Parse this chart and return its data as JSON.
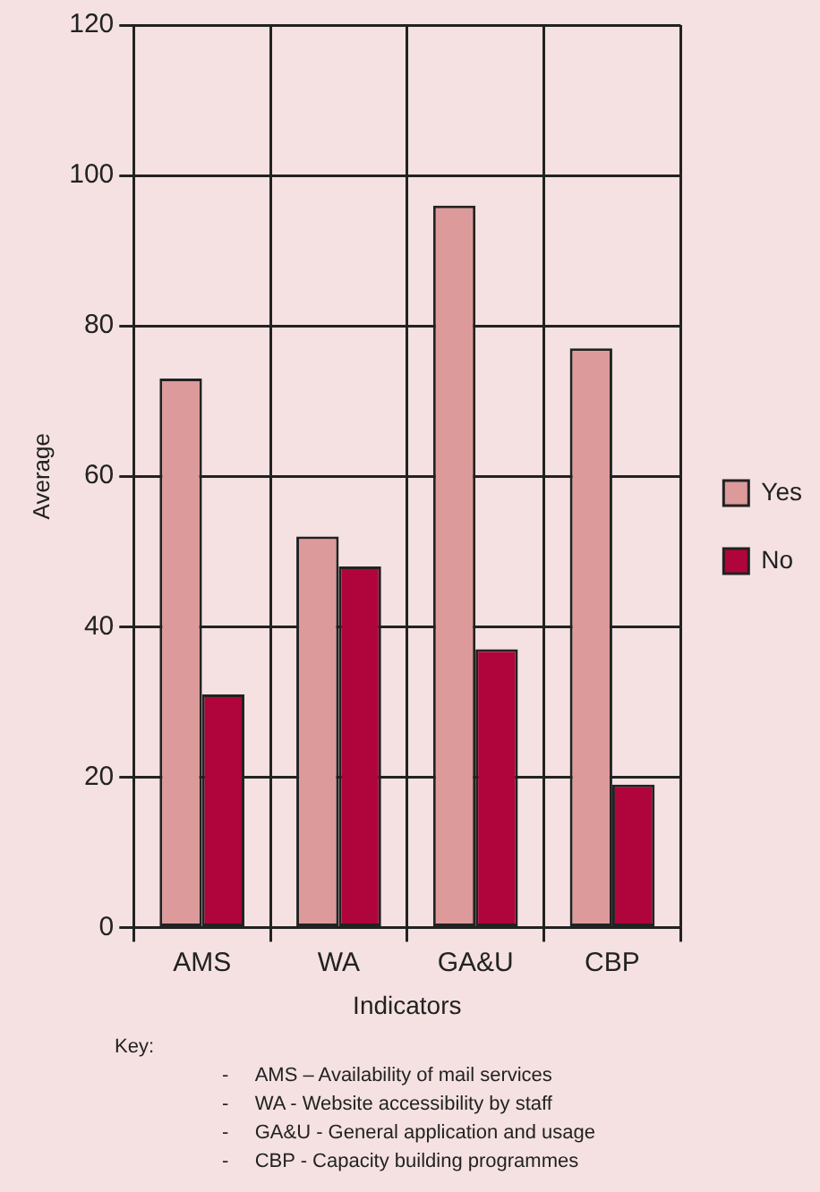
{
  "chart_data": {
    "type": "bar",
    "xlabel": "Indicators",
    "ylabel": "Average",
    "categories": [
      "AMS",
      "WA",
      "GA&U",
      "CBP"
    ],
    "series": [
      {
        "name": "Yes",
        "color": "#dc9a9a",
        "values": [
          73,
          52,
          96,
          77
        ]
      },
      {
        "name": "No",
        "color": "#b0053c",
        "values": [
          31,
          48,
          37,
          19
        ]
      }
    ],
    "ylim": [
      0,
      120
    ],
    "yticks": [
      0,
      20,
      40,
      60,
      80,
      100,
      120
    ],
    "grid": true,
    "legend": "right",
    "annotations": [
      "Key:",
      "-\tAMS – Availability of mail services",
      "-\tWA - Website accessibility by staff",
      "-\tGA&U - General application and usage",
      "-\tCBP - Capacity building programmes"
    ]
  }
}
